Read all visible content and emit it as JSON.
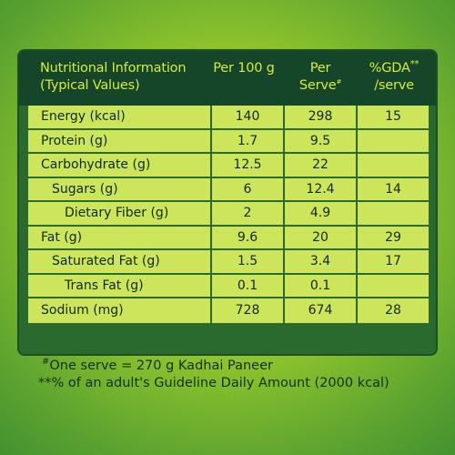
{
  "header": {
    "col_name_line1": "Nutritional Information",
    "col_name_line2": "(Typical Values)",
    "col_per100": "Per 100 g",
    "col_serve_line1": "Per",
    "col_serve_line2": "Serve",
    "col_serve_sup": "#",
    "col_gda_line1": "%GDA",
    "col_gda_sup": "**",
    "col_gda_line2": "/serve"
  },
  "rows": [
    {
      "name": "Energy (kcal)",
      "per100": "140",
      "serve": "298",
      "gda": "15"
    },
    {
      "name": "Protein (g)",
      "per100": "1.7",
      "serve": "9.5",
      "gda": ""
    },
    {
      "name": "Carbohydrate (g)",
      "per100": "12.5",
      "serve": "22",
      "gda": ""
    },
    {
      "name": "Sugars (g)",
      "per100": "6",
      "serve": "12.4",
      "gda": "14"
    },
    {
      "name": "Dietary Fiber (g)",
      "per100": "2",
      "serve": "4.9",
      "gda": ""
    },
    {
      "name": "Fat (g)",
      "per100": "9.6",
      "serve": "20",
      "gda": "29"
    },
    {
      "name": "Saturated Fat (g)",
      "per100": "1.5",
      "serve": "3.4",
      "gda": "17"
    },
    {
      "name": "Trans Fat (g)",
      "per100": "0.1",
      "serve": "0.1",
      "gda": ""
    },
    {
      "name": "Sodium (mg)",
      "per100": "728",
      "serve": "674",
      "gda": "28"
    }
  ],
  "footnotes": {
    "serve_sup": "#",
    "serve_note": "One serve = 270 g Kadhai Paneer",
    "gda_note": "**% of an adult's Guideline Daily Amount (2000 kcal)"
  },
  "colors": {
    "header_bg": "#15462a",
    "header_text": "#d7ec3b",
    "cell_bg": "#cde55b",
    "panel_bg": "#2a6a2e"
  }
}
